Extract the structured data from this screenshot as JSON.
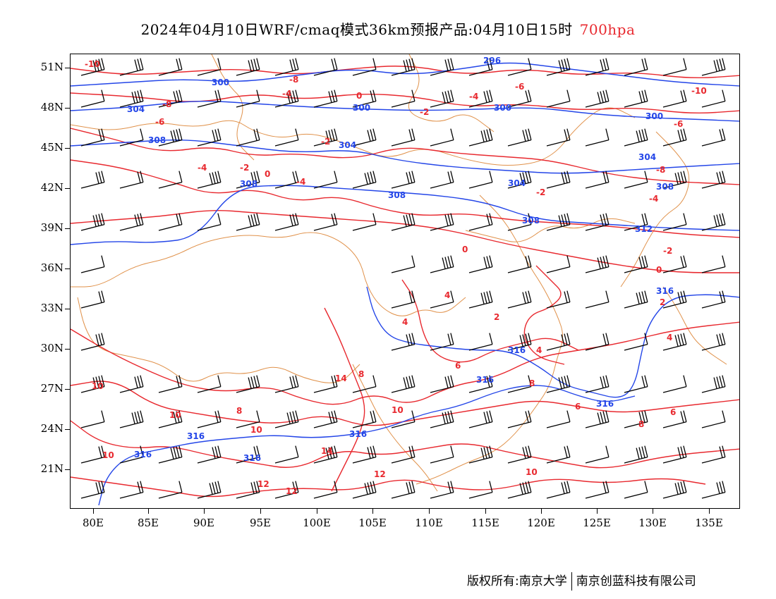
{
  "title": {
    "main": "2024年04月10日WRF/cmaq模式36km预报产品:04月10日15时",
    "level": "700hpa"
  },
  "colors": {
    "geopotential": "#2446e8",
    "temperature": "#e8292f",
    "coastline": "#e0914a",
    "wind_barb": "#000000",
    "level_text": "#e8292f"
  },
  "axes": {
    "x_labels": [
      "80E",
      "85E",
      "90E",
      "95E",
      "100E",
      "105E",
      "110E",
      "115E",
      "120E",
      "125E",
      "130E",
      "135E"
    ],
    "y_labels": [
      "51N",
      "48N",
      "45N",
      "42N",
      "39N",
      "36N",
      "33N",
      "30N",
      "27N",
      "24N",
      "21N"
    ]
  },
  "contour_labels": {
    "geopotential": [
      "296",
      "300",
      "304",
      "308",
      "312",
      "316"
    ],
    "temperature": [
      "-10",
      "-8",
      "-6",
      "-4",
      "-2",
      "0",
      "2",
      "4",
      "6",
      "8",
      "10",
      "12",
      "14"
    ]
  },
  "footer": {
    "copyright_label": "版权所有:",
    "org1": "南京大学",
    "org2": "南京创蓝科技有限公司"
  }
}
